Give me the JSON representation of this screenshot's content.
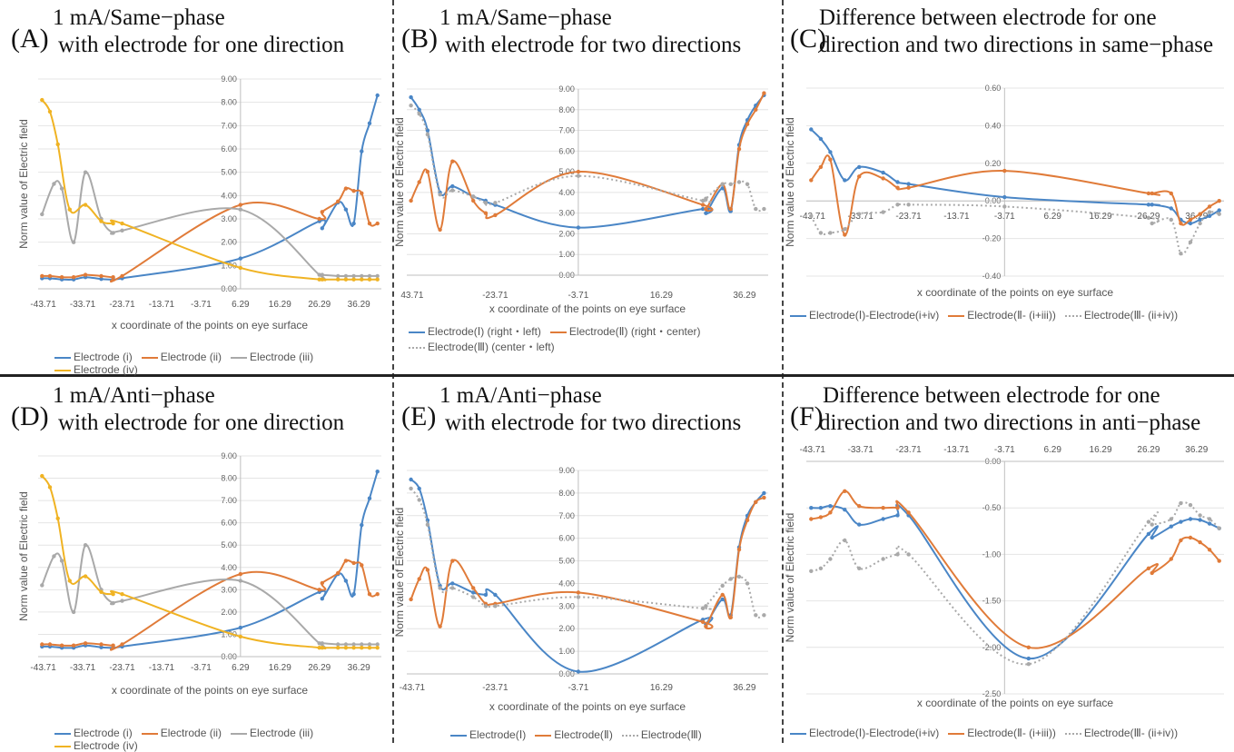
{
  "colors": {
    "blue": "#4a86c6",
    "orange": "#e07b39",
    "gray": "#a9a9a9",
    "yellow": "#f0b323"
  },
  "x_axis_label": "x coordinate of the points on eye surface",
  "y_axis_label": "Norm value of Electric field",
  "x_ticks": [
    "-43.71",
    "-33.71",
    "-23.71",
    "-13.71",
    "-3.71",
    "6.29",
    "16.29",
    "26.29",
    "36.29"
  ],
  "chart_data": [
    {
      "id": "A",
      "letter": "(A)",
      "type": "line",
      "title_lines": [
        "1 mA/Same−phase",
        "with electrode for one direction"
      ],
      "ylim": [
        0,
        9
      ],
      "y_ticks": [
        "0.00",
        "1.00",
        "2.00",
        "3.00",
        "4.00",
        "5.00",
        "6.00",
        "7.00",
        "8.00",
        "9.00"
      ],
      "x_ticks_shown": [
        "-43.71",
        "-33.71",
        "-23.71",
        "-13.71",
        "-3.71",
        "6.29",
        "16.29",
        "26.29",
        "36.29"
      ],
      "series": [
        {
          "name": "Electrode (i)",
          "color": "blue",
          "style": "solid",
          "x": [
            -44,
            -42,
            -39,
            -36,
            -33,
            -29,
            -26,
            -23.71,
            6.29,
            26.29,
            27,
            31,
            33,
            35,
            37,
            39,
            41
          ],
          "y": [
            0.45,
            0.45,
            0.4,
            0.4,
            0.5,
            0.42,
            0.4,
            0.45,
            1.3,
            2.9,
            2.6,
            3.7,
            3.4,
            2.8,
            5.9,
            7.1,
            8.3
          ]
        },
        {
          "name": "Electrode (ii)",
          "color": "orange",
          "style": "solid",
          "x": [
            -44,
            -42,
            -39,
            -36,
            -33,
            -29,
            -26,
            -23.71,
            6.29,
            26.29,
            27,
            31,
            33,
            35,
            37,
            39,
            41
          ],
          "y": [
            0.55,
            0.55,
            0.5,
            0.5,
            0.6,
            0.55,
            0.5,
            0.55,
            3.6,
            3.0,
            3.3,
            3.75,
            4.3,
            4.2,
            4.1,
            2.8,
            2.8
          ]
        },
        {
          "name": "Electrode (iii)",
          "color": "gray",
          "style": "solid",
          "x": [
            -44,
            -41,
            -39,
            -36,
            -33,
            -29,
            -26,
            -23.71,
            6.29,
            26.29,
            27,
            31,
            33,
            35,
            37,
            39,
            41
          ],
          "y": [
            3.2,
            4.5,
            4.3,
            2.0,
            5.0,
            3.0,
            2.4,
            2.5,
            3.4,
            0.6,
            0.6,
            0.55,
            0.55,
            0.55,
            0.55,
            0.55,
            0.55
          ]
        },
        {
          "name": "Electrode (iv)",
          "color": "yellow",
          "style": "solid",
          "x": [
            -44,
            -42,
            -40,
            -37,
            -33,
            -29,
            -26,
            -23.71,
            6.29,
            26.29,
            27,
            31,
            33,
            35,
            37,
            39,
            41
          ],
          "y": [
            8.1,
            7.6,
            6.2,
            3.4,
            3.6,
            2.9,
            2.8,
            2.8,
            0.9,
            0.4,
            0.4,
            0.4,
            0.4,
            0.4,
            0.4,
            0.4,
            0.4
          ]
        }
      ]
    },
    {
      "id": "B",
      "letter": "(B)",
      "type": "line",
      "title_lines": [
        "1 mA/Same−phase",
        "with electrode for two directions"
      ],
      "ylim": [
        0,
        9
      ],
      "y_ticks": [
        "0.00",
        "1.00",
        "2.00",
        "3.00",
        "4.00",
        "5.00",
        "6.00",
        "7.00",
        "8.00",
        "9.00"
      ],
      "x_ticks_shown": [
        "43.71",
        "-23.71",
        "-3.71",
        "16.29",
        "36.29"
      ],
      "series": [
        {
          "name": "Electrode(Ⅰ) (right・left)",
          "color": "blue",
          "style": "solid",
          "x": [
            -44,
            -42,
            -40,
            -37,
            -34,
            -29,
            -26,
            -23.71,
            -3.71,
            26.29,
            27,
            31,
            33,
            35,
            37,
            39,
            41
          ],
          "y": [
            8.6,
            8.0,
            7.0,
            4.0,
            4.3,
            3.8,
            3.6,
            3.4,
            2.3,
            3.2,
            3.0,
            4.2,
            3.1,
            6.3,
            7.5,
            8.2,
            8.7
          ]
        },
        {
          "name": "Electrode(Ⅱ) (right・center)",
          "color": "orange",
          "style": "solid",
          "x": [
            -44,
            -42,
            -40,
            -37,
            -34,
            -29,
            -26,
            -23.71,
            -3.71,
            26.29,
            27,
            31,
            33,
            35,
            37,
            39,
            41
          ],
          "y": [
            3.6,
            4.5,
            5.0,
            2.2,
            5.5,
            3.6,
            3.0,
            2.9,
            5.0,
            3.4,
            3.2,
            4.4,
            3.2,
            6.1,
            7.3,
            8.0,
            8.8
          ]
        },
        {
          "name": "Electrode(Ⅲ) (center・left)",
          "color": "gray",
          "style": "dotted",
          "x": [
            -44,
            -42,
            -40,
            -37,
            -34,
            -29,
            -26,
            -23.71,
            -3.71,
            26.29,
            27,
            31,
            33,
            35,
            37,
            39,
            41
          ],
          "y": [
            8.2,
            7.8,
            6.8,
            3.9,
            4.1,
            3.8,
            3.5,
            3.5,
            4.8,
            3.6,
            3.7,
            4.4,
            4.4,
            4.5,
            4.4,
            3.2,
            3.2
          ]
        }
      ]
    },
    {
      "id": "C",
      "letter": "(C)",
      "type": "line",
      "title_lines": [
        "Difference between electrode for one",
        "direction and two directions in same−phase"
      ],
      "ylim": [
        -0.4,
        0.6
      ],
      "y_ticks": [
        "-0.40",
        "-0.20",
        "0.00",
        "0.20",
        "0.40",
        "0.60"
      ],
      "x_ticks_shown": [
        "-43.71",
        "-33.71",
        "-23.71",
        "-13.71",
        "-3.71",
        "6.29",
        "16.29",
        "26.29",
        "36.29"
      ],
      "series": [
        {
          "name": "Electrode(Ⅰ)-Electrode(i+iv)",
          "color": "blue",
          "style": "solid",
          "x": [
            -44,
            -42,
            -40,
            -37,
            -34,
            -29,
            -26,
            -23.71,
            -3.71,
            26.29,
            27,
            31,
            33,
            35,
            37,
            39,
            41
          ],
          "y": [
            0.38,
            0.33,
            0.26,
            0.11,
            0.18,
            0.15,
            0.1,
            0.09,
            0.02,
            -0.02,
            -0.02,
            -0.04,
            -0.1,
            -0.12,
            -0.1,
            -0.08,
            -0.05
          ]
        },
        {
          "name": "Electrode(Ⅱ- (i+iii))",
          "color": "orange",
          "style": "solid",
          "x": [
            -44,
            -42,
            -40,
            -37,
            -34,
            -29,
            -26,
            -23.71,
            -3.71,
            26.29,
            27,
            31,
            33,
            35,
            37,
            39,
            41
          ],
          "y": [
            0.11,
            0.18,
            0.22,
            -0.18,
            0.13,
            0.12,
            0.07,
            0.07,
            0.16,
            0.04,
            0.04,
            0.04,
            -0.12,
            -0.1,
            -0.07,
            -0.03,
            0.0
          ]
        },
        {
          "name": "Electrode(Ⅲ- (ii+iv))",
          "color": "gray",
          "style": "dotted",
          "x": [
            -44,
            -42,
            -40,
            -37,
            -34,
            -29,
            -26,
            -23.71,
            -3.71,
            26.29,
            27,
            31,
            33,
            35,
            37,
            39,
            41
          ],
          "y": [
            -0.08,
            -0.17,
            -0.17,
            -0.15,
            -0.07,
            -0.06,
            -0.02,
            -0.02,
            -0.03,
            -0.09,
            -0.12,
            -0.1,
            -0.28,
            -0.22,
            -0.12,
            -0.06,
            -0.07
          ]
        }
      ]
    },
    {
      "id": "D",
      "letter": "(D)",
      "type": "line",
      "title_lines": [
        "1 mA/Anti−phase",
        "with electrode for one direction"
      ],
      "ylim": [
        0,
        9
      ],
      "y_ticks": [
        "0.00",
        "1.00",
        "2.00",
        "3.00",
        "4.00",
        "5.00",
        "6.00",
        "7.00",
        "8.00",
        "9.00"
      ],
      "x_ticks_shown": [
        "-43.71",
        "-33.71",
        "-23.71",
        "-13.71",
        "-3.71",
        "6.29",
        "16.29",
        "26.29",
        "36.29"
      ],
      "series": [
        {
          "name": "Electrode (i)",
          "color": "blue",
          "style": "solid",
          "x": [
            -44,
            -42,
            -39,
            -36,
            -33,
            -29,
            -26,
            -23.71,
            6.29,
            26.29,
            27,
            31,
            33,
            35,
            37,
            39,
            41
          ],
          "y": [
            0.45,
            0.45,
            0.4,
            0.4,
            0.5,
            0.42,
            0.4,
            0.45,
            1.3,
            2.9,
            2.6,
            3.7,
            3.4,
            2.8,
            5.9,
            7.1,
            8.3
          ]
        },
        {
          "name": "Electrode (ii)",
          "color": "orange",
          "style": "solid",
          "x": [
            -44,
            -42,
            -39,
            -36,
            -33,
            -29,
            -26,
            -23.71,
            6.29,
            26.29,
            27,
            31,
            33,
            35,
            37,
            39,
            41
          ],
          "y": [
            0.55,
            0.55,
            0.5,
            0.5,
            0.6,
            0.55,
            0.5,
            0.55,
            3.7,
            3.0,
            3.3,
            3.75,
            4.3,
            4.2,
            4.1,
            2.8,
            2.8
          ]
        },
        {
          "name": "Electrode (iii)",
          "color": "gray",
          "style": "solid",
          "x": [
            -44,
            -41,
            -39,
            -36,
            -33,
            -29,
            -26,
            -23.71,
            6.29,
            26.29,
            27,
            31,
            33,
            35,
            37,
            39,
            41
          ],
          "y": [
            3.2,
            4.5,
            4.3,
            2.0,
            5.0,
            3.0,
            2.4,
            2.5,
            3.4,
            0.6,
            0.6,
            0.55,
            0.55,
            0.55,
            0.55,
            0.55,
            0.55
          ]
        },
        {
          "name": "Electrode (iv)",
          "color": "yellow",
          "style": "solid",
          "x": [
            -44,
            -42,
            -40,
            -37,
            -33,
            -29,
            -26,
            -23.71,
            6.29,
            26.29,
            27,
            31,
            33,
            35,
            37,
            39,
            41
          ],
          "y": [
            8.1,
            7.6,
            6.2,
            3.4,
            3.6,
            2.9,
            2.8,
            2.8,
            0.9,
            0.4,
            0.4,
            0.4,
            0.4,
            0.4,
            0.4,
            0.4,
            0.4
          ]
        }
      ]
    },
    {
      "id": "E",
      "letter": "(E)",
      "type": "line",
      "title_lines": [
        "1 mA/Anti−phase",
        "with electrode for two directions"
      ],
      "ylim": [
        0,
        9
      ],
      "y_ticks": [
        "0.00",
        "1.00",
        "2.00",
        "3.00",
        "4.00",
        "5.00",
        "6.00",
        "7.00",
        "8.00",
        "9.00"
      ],
      "x_ticks_shown": [
        "-43.71",
        "-23.71",
        "-3.71",
        "16.29",
        "36.29"
      ],
      "series": [
        {
          "name": "Electrode(Ⅰ)",
          "color": "blue",
          "style": "solid",
          "x": [
            -44,
            -42,
            -40,
            -37,
            -34,
            -29,
            -26,
            -23.71,
            -3.71,
            26.29,
            27,
            31,
            33,
            35,
            37,
            39,
            41
          ],
          "y": [
            8.6,
            8.2,
            6.8,
            3.9,
            4.0,
            3.6,
            3.5,
            3.5,
            0.1,
            2.4,
            2.2,
            3.3,
            2.6,
            5.6,
            7.0,
            7.6,
            8.0
          ]
        },
        {
          "name": "Electrode(Ⅱ)",
          "color": "orange",
          "style": "solid",
          "x": [
            -44,
            -42,
            -40,
            -37,
            -34,
            -29,
            -26,
            -23.71,
            -3.71,
            26.29,
            27,
            31,
            33,
            35,
            37,
            39,
            41
          ],
          "y": [
            3.3,
            4.2,
            4.6,
            2.1,
            5.0,
            3.8,
            3.1,
            3.1,
            3.6,
            2.3,
            2.1,
            3.5,
            2.5,
            5.5,
            6.8,
            7.6,
            7.8
          ]
        },
        {
          "name": "Electrode(Ⅲ)",
          "color": "gray",
          "style": "dotted",
          "x": [
            -44,
            -42,
            -40,
            -37,
            -34,
            -29,
            -26,
            -23.71,
            -3.71,
            26.29,
            27,
            31,
            33,
            35,
            37,
            39,
            41
          ],
          "y": [
            8.2,
            7.7,
            6.6,
            3.8,
            3.8,
            3.4,
            3.0,
            3.0,
            3.4,
            2.9,
            3.0,
            3.9,
            4.2,
            4.3,
            4.0,
            2.6,
            2.6
          ]
        }
      ]
    },
    {
      "id": "F",
      "letter": "(F)",
      "type": "line",
      "title_lines": [
        "Difference between electrode for one",
        "direction and two directions in anti−phase"
      ],
      "ylim": [
        -2.5,
        0.0
      ],
      "y_ticks": [
        "-2.50",
        "-2.00",
        "-1.50",
        "-1.00",
        "-0.50",
        "0.00"
      ],
      "x_ticks_shown": [
        "-43.71",
        "-33.71",
        "-23.71",
        "-13.71",
        "-3.71",
        "6.29",
        "16.29",
        "26.29",
        "36.29"
      ],
      "series": [
        {
          "name": "Electrode(Ⅰ)-Electrode(i+iv)",
          "color": "blue",
          "style": "solid",
          "x": [
            -44,
            -42,
            -40,
            -37,
            -34,
            -29,
            -26,
            -23.71,
            1.29,
            26.29,
            27,
            31,
            33,
            35,
            37,
            39,
            41
          ],
          "y": [
            -0.5,
            -0.5,
            -0.48,
            -0.52,
            -0.68,
            -0.62,
            -0.58,
            -0.58,
            -2.12,
            -0.78,
            -0.82,
            -0.7,
            -0.65,
            -0.62,
            -0.63,
            -0.67,
            -0.72
          ]
        },
        {
          "name": "Electrode(Ⅱ- (i+iii))",
          "color": "orange",
          "style": "solid",
          "x": [
            -44,
            -42,
            -40,
            -37,
            -34,
            -29,
            -26,
            -23.71,
            1.29,
            26.29,
            27,
            31,
            33,
            35,
            37,
            39,
            41
          ],
          "y": [
            -0.62,
            -0.6,
            -0.55,
            -0.32,
            -0.48,
            -0.5,
            -0.5,
            -0.55,
            -2.0,
            -1.15,
            -1.2,
            -1.05,
            -0.85,
            -0.82,
            -0.87,
            -0.95,
            -1.07
          ]
        },
        {
          "name": "Electrode(Ⅲ- (ii+iv))",
          "color": "gray",
          "style": "dotted",
          "x": [
            -44,
            -42,
            -40,
            -37,
            -34,
            -29,
            -26,
            -23.71,
            1.29,
            26.29,
            27,
            31,
            33,
            35,
            37,
            39,
            41
          ],
          "y": [
            -1.18,
            -1.15,
            -1.05,
            -0.85,
            -1.15,
            -1.05,
            -1.0,
            -1.0,
            -2.18,
            -0.65,
            -0.68,
            -0.62,
            -0.45,
            -0.47,
            -0.58,
            -0.62,
            -0.72
          ]
        }
      ]
    }
  ]
}
